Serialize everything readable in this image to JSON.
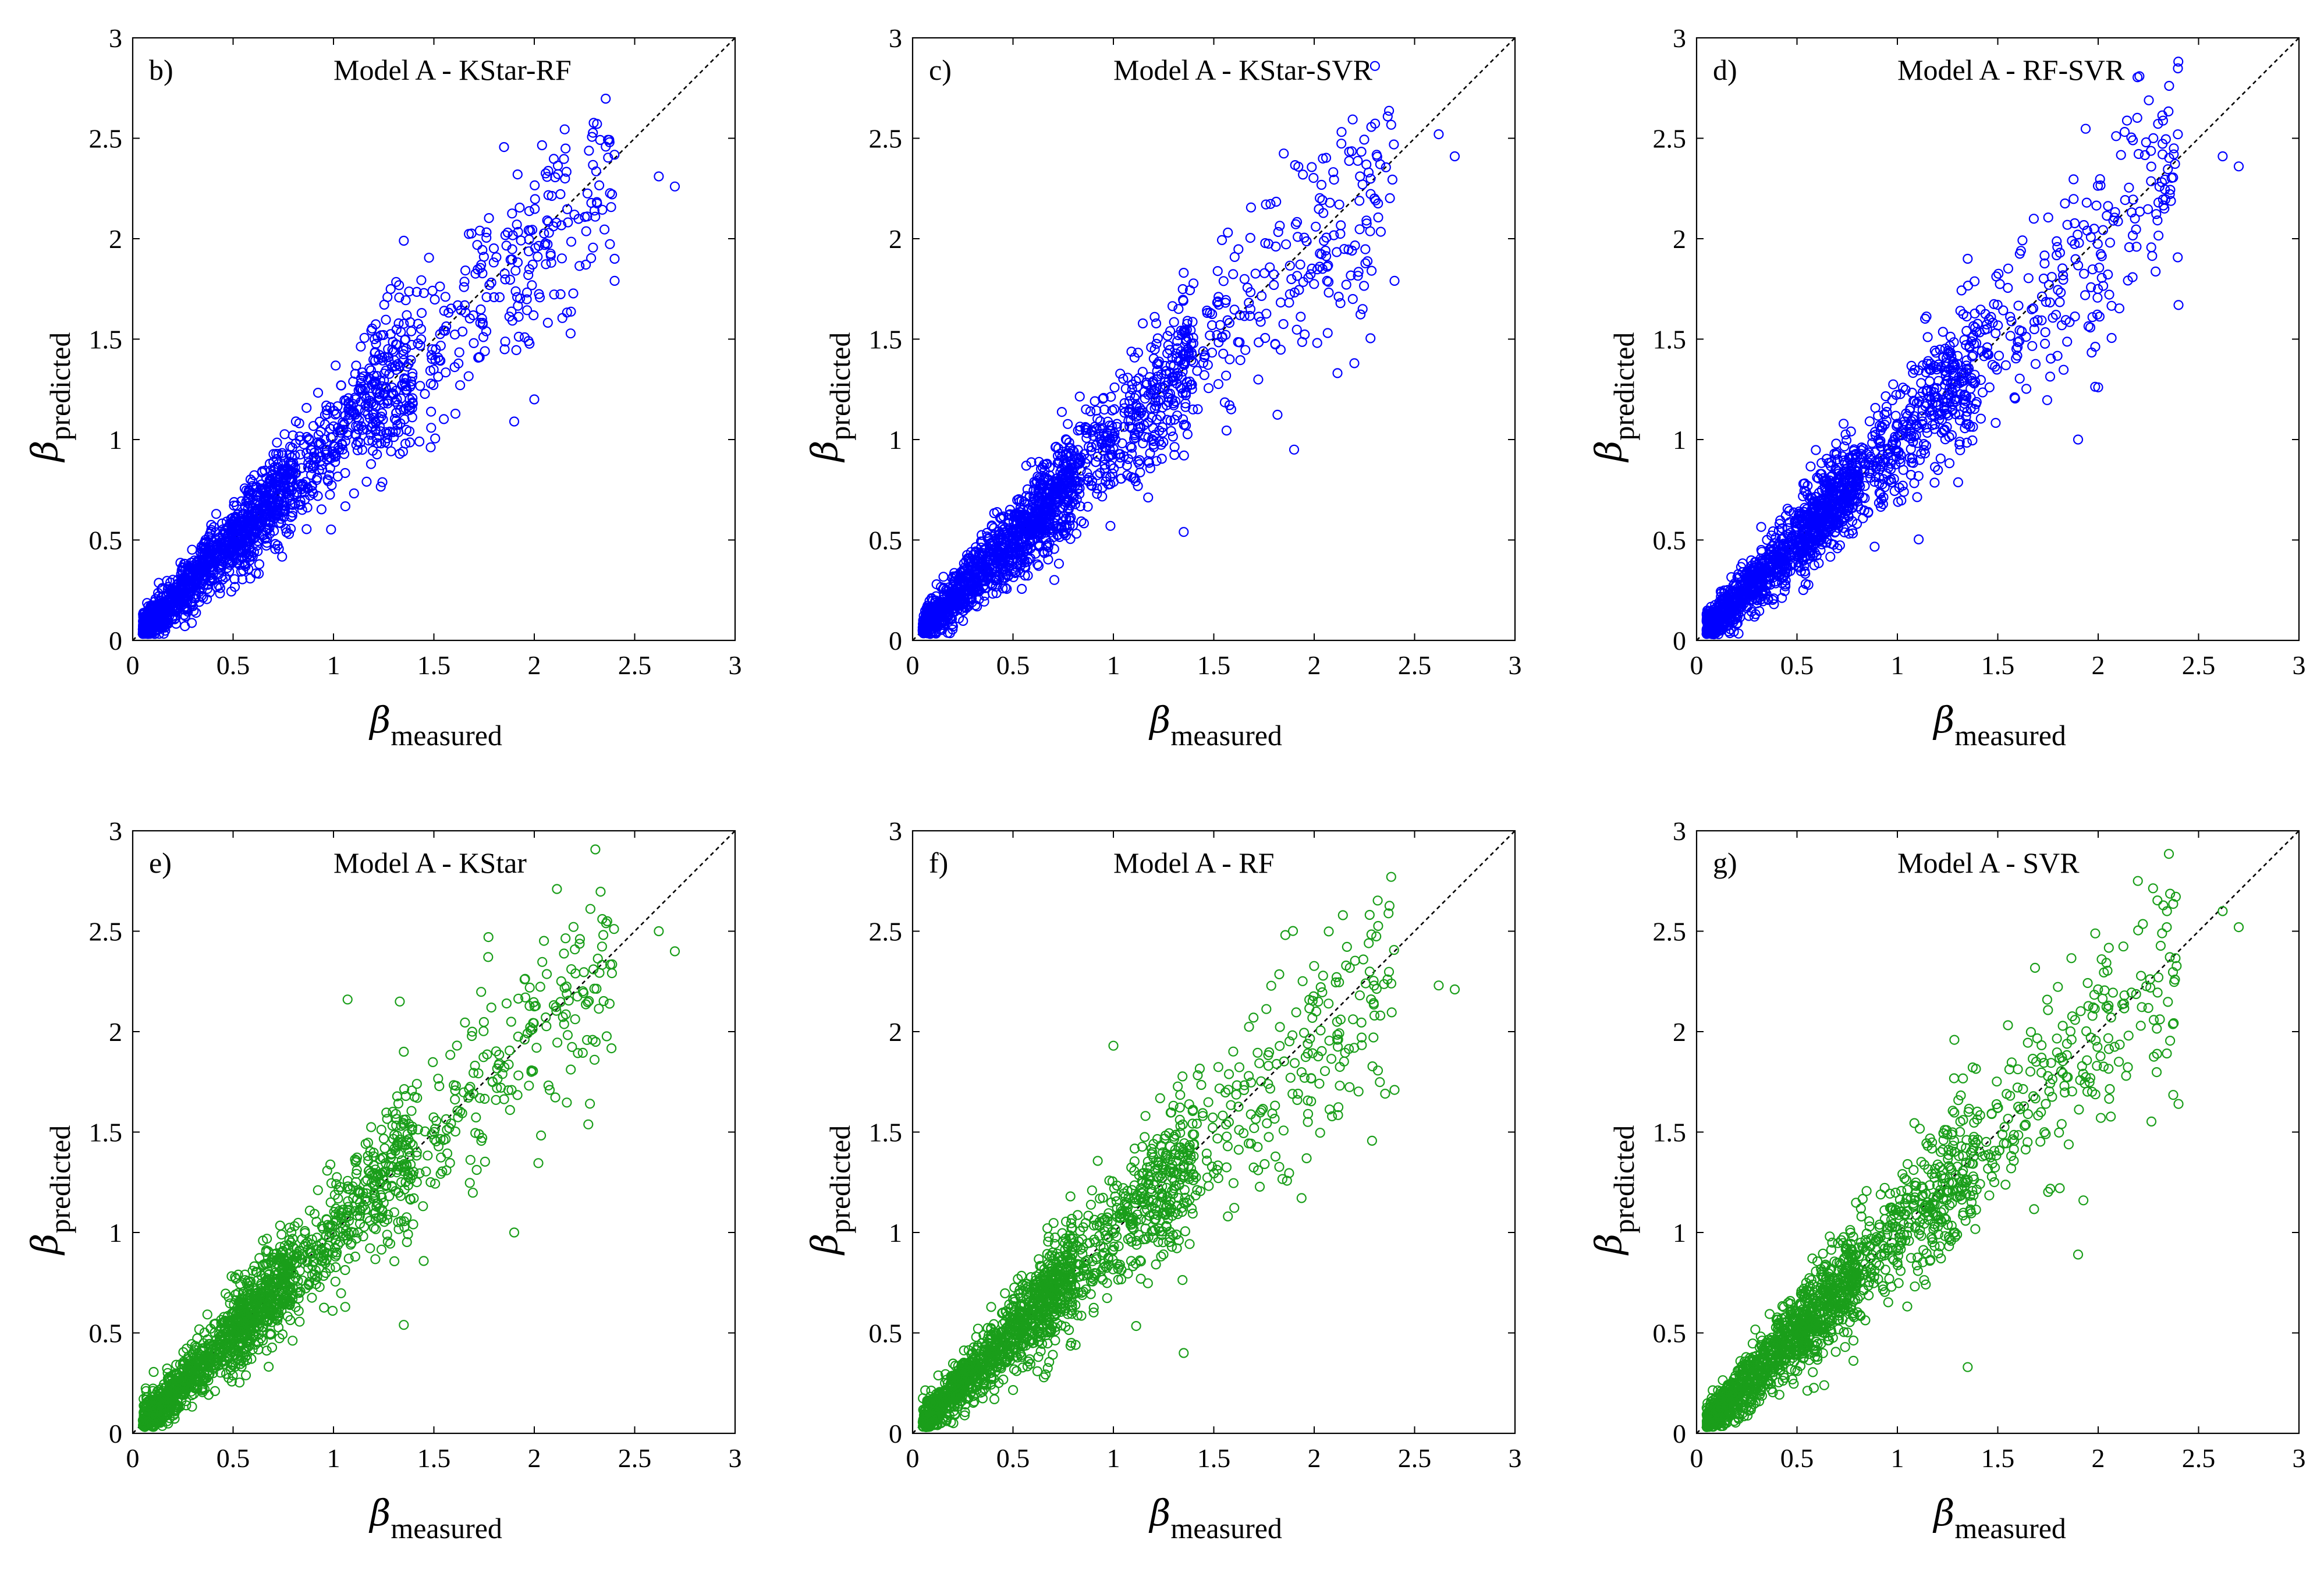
{
  "figure": {
    "colors": {
      "green": "#1a9e1a",
      "blue": "#0000ff",
      "axis": "#000000",
      "identity_line": "#000000"
    }
  },
  "chart_data": [
    {
      "type": "scatter",
      "panel": "b)",
      "title": "Model A - KStar-RF",
      "series_color": "blue",
      "xlabel_symbol": "β",
      "xlabel_sub": "measured",
      "ylabel_symbol": "β",
      "ylabel_sub": "predicted",
      "xlim": [
        0,
        3
      ],
      "ylim": [
        0,
        3
      ],
      "xticks": [
        "0",
        "0.5",
        "1",
        "1.5",
        "2",
        "2.5",
        "3"
      ],
      "yticks": [
        "0",
        "0.5",
        "1",
        "1.5",
        "2",
        "2.5",
        "3"
      ],
      "identity_line": [
        [
          0,
          0
        ],
        [
          3,
          3
        ]
      ],
      "notable_points": [
        [
          2.62,
          2.31
        ],
        [
          2.7,
          2.26
        ],
        [
          2.3,
          2.14
        ],
        [
          2.4,
          1.9
        ],
        [
          2.4,
          1.79
        ],
        [
          1.35,
          1.99
        ],
        [
          1.9,
          1.09
        ],
        [
          2.0,
          1.2
        ]
      ],
      "description": "Approx. 2000 points clustered around the 1:1 line from 0.05 to 2.7"
    },
    {
      "type": "scatter",
      "panel": "c)",
      "title": "Model A - KStar-SVR",
      "series_color": "blue",
      "xlabel_symbol": "β",
      "xlabel_sub": "measured",
      "ylabel_symbol": "β",
      "ylabel_sub": "predicted",
      "xlim": [
        0,
        3
      ],
      "ylim": [
        0,
        3
      ],
      "xticks": [
        "0",
        "0.5",
        "1",
        "1.5",
        "2",
        "2.5",
        "3"
      ],
      "yticks": [
        "0",
        "0.5",
        "1",
        "1.5",
        "2",
        "2.5",
        "3"
      ],
      "identity_line": [
        [
          0,
          0
        ],
        [
          3,
          3
        ]
      ],
      "notable_points": [
        [
          2.62,
          2.52
        ],
        [
          2.7,
          2.41
        ],
        [
          2.3,
          2.2
        ],
        [
          2.4,
          1.79
        ],
        [
          1.9,
          0.95
        ],
        [
          1.35,
          0.54
        ],
        [
          1.35,
          1.83
        ],
        [
          2.2,
          1.38
        ]
      ],
      "description": "Approx. 2000 points clustered around the 1:1 line"
    },
    {
      "type": "scatter",
      "panel": "d)",
      "title": "Model A - RF-SVR",
      "series_color": "blue",
      "xlabel_symbol": "β",
      "xlabel_sub": "measured",
      "ylabel_symbol": "β",
      "ylabel_sub": "predicted",
      "xlim": [
        0,
        3
      ],
      "ylim": [
        0,
        3
      ],
      "xticks": [
        "0",
        "0.5",
        "1",
        "1.5",
        "2",
        "2.5",
        "3"
      ],
      "yticks": [
        "0",
        "0.5",
        "1",
        "1.5",
        "2",
        "2.5",
        "3"
      ],
      "identity_line": [
        [
          0,
          0
        ],
        [
          3,
          3
        ]
      ],
      "notable_points": [
        [
          2.62,
          2.41
        ],
        [
          2.7,
          2.36
        ],
        [
          2.3,
          2.18
        ],
        [
          2.4,
          1.67
        ],
        [
          2.0,
          1.26
        ],
        [
          1.9,
          1.0
        ],
        [
          1.35,
          1.9
        ]
      ],
      "description": "Approx. 2000 points clustered around the 1:1 line"
    },
    {
      "type": "scatter",
      "panel": "e)",
      "title": "Model A - KStar",
      "series_color": "green",
      "xlabel_symbol": "β",
      "xlabel_sub": "measured",
      "ylabel_symbol": "β",
      "ylabel_sub": "predicted",
      "xlim": [
        0,
        3
      ],
      "ylim": [
        0,
        3
      ],
      "xticks": [
        "0",
        "0.5",
        "1",
        "1.5",
        "2",
        "2.5",
        "3"
      ],
      "yticks": [
        "0",
        "0.5",
        "1",
        "1.5",
        "2",
        "2.5",
        "3"
      ],
      "identity_line": [
        [
          0,
          0
        ],
        [
          3,
          3
        ]
      ],
      "notable_points": [
        [
          2.62,
          2.5
        ],
        [
          2.7,
          2.4
        ],
        [
          1.07,
          2.16
        ],
        [
          1.33,
          2.15
        ],
        [
          1.35,
          0.54
        ],
        [
          1.9,
          1.0
        ],
        [
          2.3,
          1.86
        ],
        [
          1.35,
          1.9
        ]
      ],
      "description": "Approx. 2000 points clustered around the 1:1 line"
    },
    {
      "type": "scatter",
      "panel": "f)",
      "title": "Model A - RF",
      "series_color": "green",
      "xlabel_symbol": "β",
      "xlabel_sub": "measured",
      "ylabel_symbol": "β",
      "ylabel_sub": "predicted",
      "xlim": [
        0,
        3
      ],
      "ylim": [
        0,
        3
      ],
      "xticks": [
        "0",
        "0.5",
        "1",
        "1.5",
        "2",
        "2.5",
        "3"
      ],
      "yticks": [
        "0",
        "0.5",
        "1",
        "1.5",
        "2",
        "2.5",
        "3"
      ],
      "identity_line": [
        [
          0,
          0
        ],
        [
          3,
          3
        ]
      ],
      "notable_points": [
        [
          2.62,
          2.23
        ],
        [
          2.7,
          2.21
        ],
        [
          1.35,
          0.4
        ],
        [
          2.3,
          2.08
        ],
        [
          2.4,
          1.71
        ],
        [
          1.0,
          1.93
        ]
      ],
      "description": "Approx. 2000 points clustered around the 1:1 line"
    },
    {
      "type": "scatter",
      "panel": "g)",
      "title": "Model A - SVR",
      "series_color": "green",
      "xlabel_symbol": "β",
      "xlabel_sub": "measured",
      "ylabel_symbol": "β",
      "ylabel_sub": "predicted",
      "xlim": [
        0,
        3
      ],
      "ylim": [
        0,
        3
      ],
      "xticks": [
        "0",
        "0.5",
        "1",
        "1.5",
        "2",
        "2.5",
        "3"
      ],
      "yticks": [
        "0",
        "0.5",
        "1",
        "1.5",
        "2",
        "2.5",
        "3"
      ],
      "identity_line": [
        [
          0,
          0
        ],
        [
          3,
          3
        ]
      ],
      "notable_points": [
        [
          2.62,
          2.6
        ],
        [
          2.7,
          2.52
        ],
        [
          1.35,
          0.33
        ],
        [
          2.4,
          1.64
        ],
        [
          1.9,
          0.89
        ],
        [
          2.3,
          2.27
        ]
      ],
      "description": "Approx. 2000 points clustered around the 1:1 line"
    }
  ]
}
